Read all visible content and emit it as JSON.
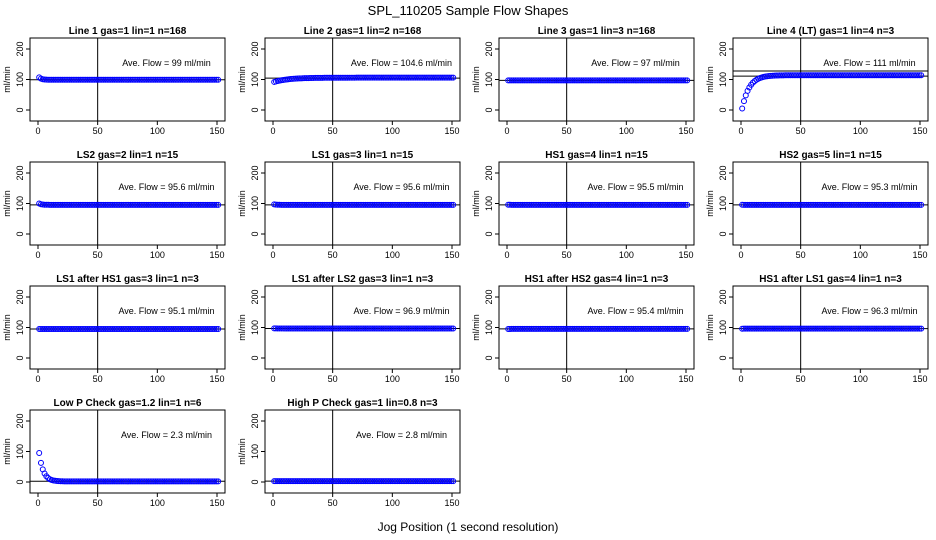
{
  "title": "SPL_110205  Sample Flow Shapes",
  "xlabel": "Jog Position (1 second resolution)",
  "colors": {
    "points": "#0000ff",
    "lines": "#000000"
  },
  "chart_data": [
    {
      "type": "scatter",
      "title": "Line 1 gas=1 lin=1 n=168",
      "annotation": "Ave. Flow =  99  ml/min",
      "ylabel": "ml/min",
      "xlim": [
        0,
        150
      ],
      "ylim": [
        0,
        200
      ],
      "xticks": [
        "0",
        "50",
        "100",
        "150"
      ],
      "yticks": [
        "0",
        "100",
        "200"
      ],
      "vline": 50,
      "hline": 99,
      "shape": "flat",
      "level": 99,
      "start": 107
    },
    {
      "type": "scatter",
      "title": "Line 2 gas=1 lin=2 n=168",
      "annotation": "Ave. Flow =  104.6  ml/min",
      "ylabel": "ml/min",
      "xlim": [
        0,
        150
      ],
      "ylim": [
        0,
        200
      ],
      "xticks": [
        "0",
        "50",
        "100",
        "150"
      ],
      "yticks": [
        "0",
        "100",
        "200"
      ],
      "vline": 50,
      "hline": 104.6,
      "shape": "rise",
      "level": 106,
      "start": 92,
      "tau": 12
    },
    {
      "type": "scatter",
      "title": "Line 3 gas=1 lin=3 n=168",
      "annotation": "Ave. Flow =  97  ml/min",
      "ylabel": "ml/min",
      "xlim": [
        0,
        150
      ],
      "ylim": [
        0,
        200
      ],
      "xticks": [
        "0",
        "50",
        "100",
        "150"
      ],
      "yticks": [
        "0",
        "100",
        "200"
      ],
      "vline": 50,
      "hline": 97,
      "shape": "flat",
      "level": 97,
      "start": 97
    },
    {
      "type": "scatter",
      "title": "Line 4 (LT) gas=1 lin=4 n=3",
      "annotation": "Ave. Flow =  111  ml/min",
      "ylabel": "ml/min",
      "xlim": [
        0,
        150
      ],
      "ylim": [
        0,
        200
      ],
      "xticks": [
        "0",
        "50",
        "100",
        "150"
      ],
      "yticks": [
        "0",
        "100",
        "200"
      ],
      "vline": 50,
      "hline": 111,
      "hline2": 128,
      "shape": "rise",
      "level": 114,
      "start": 5,
      "tau": 6
    },
    {
      "type": "scatter",
      "title": "LS2 gas=2 lin=1 n=15",
      "annotation": "Ave. Flow =  95.6  ml/min",
      "ylabel": "ml/min",
      "xlim": [
        0,
        150
      ],
      "ylim": [
        0,
        200
      ],
      "xticks": [
        "0",
        "50",
        "100",
        "150"
      ],
      "yticks": [
        "0",
        "100",
        "200"
      ],
      "vline": 50,
      "hline": 95.6,
      "shape": "flat",
      "level": 95.6,
      "start": 100
    },
    {
      "type": "scatter",
      "title": "LS1 gas=3 lin=1 n=15",
      "annotation": "Ave. Flow =  95.6  ml/min",
      "ylabel": "ml/min",
      "xlim": [
        0,
        150
      ],
      "ylim": [
        0,
        200
      ],
      "xticks": [
        "0",
        "50",
        "100",
        "150"
      ],
      "yticks": [
        "0",
        "100",
        "200"
      ],
      "vline": 50,
      "hline": 95.6,
      "shape": "flat",
      "level": 95.6,
      "start": 97
    },
    {
      "type": "scatter",
      "title": "HS1 gas=4 lin=1 n=15",
      "annotation": "Ave. Flow =  95.5  ml/min",
      "ylabel": "ml/min",
      "xlim": [
        0,
        150
      ],
      "ylim": [
        0,
        200
      ],
      "xticks": [
        "0",
        "50",
        "100",
        "150"
      ],
      "yticks": [
        "0",
        "100",
        "200"
      ],
      "vline": 50,
      "hline": 95.5,
      "shape": "flat",
      "level": 95.5,
      "start": 96
    },
    {
      "type": "scatter",
      "title": "HS2 gas=5 lin=1 n=15",
      "annotation": "Ave. Flow =  95.3  ml/min",
      "ylabel": "ml/min",
      "xlim": [
        0,
        150
      ],
      "ylim": [
        0,
        200
      ],
      "xticks": [
        "0",
        "50",
        "100",
        "150"
      ],
      "yticks": [
        "0",
        "100",
        "200"
      ],
      "vline": 50,
      "hline": 95.3,
      "shape": "flat",
      "level": 95.3,
      "start": 96
    },
    {
      "type": "scatter",
      "title": "LS1 after HS1 gas=3 lin=1 n=3",
      "annotation": "Ave. Flow =  95.1  ml/min",
      "ylabel": "ml/min",
      "xlim": [
        0,
        150
      ],
      "ylim": [
        0,
        200
      ],
      "xticks": [
        "0",
        "50",
        "100",
        "150"
      ],
      "yticks": [
        "0",
        "100",
        "200"
      ],
      "vline": 50,
      "hline": 95.1,
      "shape": "flat",
      "level": 95.1,
      "start": 95
    },
    {
      "type": "scatter",
      "title": "LS1 after LS2 gas=3 lin=1 n=3",
      "annotation": "Ave. Flow =  96.9  ml/min",
      "ylabel": "ml/min",
      "xlim": [
        0,
        150
      ],
      "ylim": [
        0,
        200
      ],
      "xticks": [
        "0",
        "50",
        "100",
        "150"
      ],
      "yticks": [
        "0",
        "100",
        "200"
      ],
      "vline": 50,
      "hline": 96.9,
      "shape": "flat",
      "level": 96.9,
      "start": 97
    },
    {
      "type": "scatter",
      "title": "HS1 after HS2 gas=4 lin=1 n=3",
      "annotation": "Ave. Flow =  95.4  ml/min",
      "ylabel": "ml/min",
      "xlim": [
        0,
        150
      ],
      "ylim": [
        0,
        200
      ],
      "xticks": [
        "0",
        "50",
        "100",
        "150"
      ],
      "yticks": [
        "0",
        "100",
        "200"
      ],
      "vline": 50,
      "hline": 95.4,
      "shape": "flat",
      "level": 95.4,
      "start": 95
    },
    {
      "type": "scatter",
      "title": "HS1 after LS1 gas=4 lin=1 n=3",
      "annotation": "Ave. Flow =  96.3  ml/min",
      "ylabel": "ml/min",
      "xlim": [
        0,
        150
      ],
      "ylim": [
        0,
        200
      ],
      "xticks": [
        "0",
        "50",
        "100",
        "150"
      ],
      "yticks": [
        "0",
        "100",
        "200"
      ],
      "vline": 50,
      "hline": 96.3,
      "shape": "flat",
      "level": 96.3,
      "start": 96
    },
    {
      "type": "scatter",
      "title": "Low P Check gas=1.2 lin=1 n=6",
      "annotation": "Ave. Flow =  2.3  ml/min",
      "ylabel": "ml/min",
      "xlim": [
        0,
        150
      ],
      "ylim": [
        0,
        200
      ],
      "xticks": [
        "0",
        "50",
        "100",
        "150"
      ],
      "yticks": [
        "0",
        "100",
        "200"
      ],
      "vline": 50,
      "hline": 2.3,
      "shape": "decay",
      "level": 2,
      "start": 95,
      "tau": 3.5
    },
    {
      "type": "scatter",
      "title": "High P Check gas=1 lin=0.8 n=3",
      "annotation": "Ave. Flow =  2.8  ml/min",
      "ylabel": "ml/min",
      "xlim": [
        0,
        150
      ],
      "ylim": [
        0,
        200
      ],
      "xticks": [
        "0",
        "50",
        "100",
        "150"
      ],
      "yticks": [
        "0",
        "100",
        "200"
      ],
      "vline": 50,
      "hline": 2.8,
      "shape": "flat",
      "level": 2.8,
      "start": 3
    }
  ]
}
